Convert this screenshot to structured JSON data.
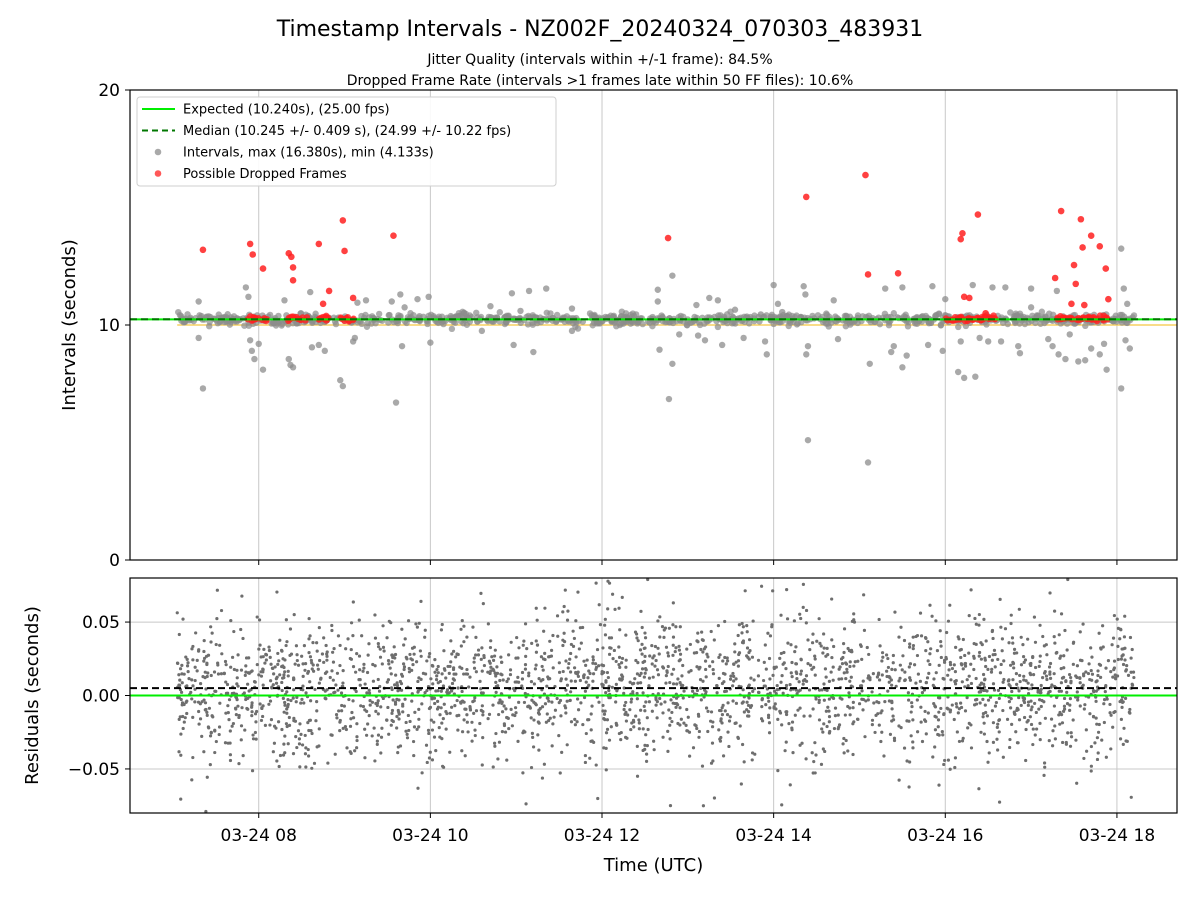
{
  "title": "Timestamp Intervals - NZ002F_20240324_070303_483931",
  "subtitle_1": "Jitter Quality (intervals within +/-1 frame): 84.5%",
  "subtitle_2": "Dropped Frame Rate (intervals >1 frames late within 50 FF files): 10.6%",
  "colors": {
    "expected": "#00ee00",
    "median": "#007700",
    "intervals": "#8c8c8c",
    "dropped": "#ff2020",
    "band": "#f5c842",
    "grid": "#c8c8c8"
  },
  "chart_data": [
    {
      "type": "scatter",
      "panel": "intervals",
      "ylabel": "Intervals (seconds)",
      "xlabel": "",
      "x_ticks": [
        "03-24 08",
        "03-24 10",
        "03-24 12",
        "03-24 14",
        "03-24 16",
        "03-24 18"
      ],
      "x_tick_hours": [
        8,
        10,
        12,
        14,
        16,
        18
      ],
      "xlim_hours": [
        6.5,
        18.7
      ],
      "y_ticks": [
        "0",
        "10",
        "20"
      ],
      "ylim": [
        0,
        20
      ],
      "grid": "x only",
      "legend_position": "upper-left",
      "legend": [
        {
          "label": "Expected (10.240s), (25.00 fps)",
          "kind": "line",
          "color": "#00ee00"
        },
        {
          "label": "Median (10.245 +/- 0.409 s), (24.99 +/- 10.22 fps)",
          "kind": "dashed",
          "color": "#007700"
        },
        {
          "label": "Intervals, max (16.380s), min (4.133s)",
          "kind": "marker",
          "color": "#8c8c8c"
        },
        {
          "label": "Possible Dropped Frames",
          "kind": "marker",
          "color": "#ff2020"
        }
      ],
      "expected_value": 10.24,
      "median_value": 10.245,
      "band_lower": 10.0,
      "series_dropped_frames": [
        [
          7.35,
          13.2
        ],
        [
          7.9,
          13.45
        ],
        [
          7.93,
          13.0
        ],
        [
          8.05,
          12.4
        ],
        [
          8.35,
          13.05
        ],
        [
          8.38,
          12.9
        ],
        [
          8.4,
          12.45
        ],
        [
          8.4,
          11.9
        ],
        [
          8.7,
          13.45
        ],
        [
          8.75,
          10.9
        ],
        [
          8.82,
          11.45
        ],
        [
          8.98,
          14.45
        ],
        [
          9.0,
          13.15
        ],
        [
          9.1,
          11.15
        ],
        [
          9.57,
          13.8
        ],
        [
          12.77,
          13.7
        ],
        [
          14.38,
          15.45
        ],
        [
          15.07,
          16.38
        ],
        [
          15.1,
          12.15
        ],
        [
          15.45,
          12.2
        ],
        [
          16.18,
          13.65
        ],
        [
          16.2,
          13.9
        ],
        [
          16.22,
          11.2
        ],
        [
          16.28,
          11.15
        ],
        [
          16.38,
          14.7
        ],
        [
          16.47,
          10.5
        ],
        [
          17.28,
          12.0
        ],
        [
          17.35,
          14.85
        ],
        [
          17.5,
          12.55
        ],
        [
          17.52,
          11.75
        ],
        [
          17.58,
          14.5
        ],
        [
          17.6,
          13.3
        ],
        [
          17.7,
          13.8
        ],
        [
          17.8,
          13.35
        ],
        [
          17.87,
          12.4
        ],
        [
          17.9,
          11.1
        ],
        [
          17.47,
          10.9
        ],
        [
          17.62,
          10.85
        ]
      ],
      "series_dropped_cluster_ranges": [
        [
          7.85,
          8.1
        ],
        [
          8.33,
          8.58
        ],
        [
          8.68,
          8.88
        ],
        [
          8.95,
          9.12
        ],
        [
          16.0,
          16.6
        ],
        [
          17.3,
          17.95
        ]
      ],
      "series_interval_outliers": [
        [
          7.3,
          11.0
        ],
        [
          7.3,
          9.45
        ],
        [
          7.35,
          7.3
        ],
        [
          7.85,
          11.6
        ],
        [
          7.88,
          11.2
        ],
        [
          7.9,
          9.35
        ],
        [
          7.92,
          8.9
        ],
        [
          7.95,
          8.55
        ],
        [
          8.0,
          9.2
        ],
        [
          8.05,
          8.1
        ],
        [
          8.3,
          11.05
        ],
        [
          8.35,
          8.55
        ],
        [
          8.37,
          8.3
        ],
        [
          8.4,
          8.2
        ],
        [
          8.6,
          11.4
        ],
        [
          8.62,
          9.05
        ],
        [
          8.7,
          9.15
        ],
        [
          8.77,
          8.9
        ],
        [
          8.95,
          7.65
        ],
        [
          8.98,
          7.4
        ],
        [
          9.1,
          9.3
        ],
        [
          9.12,
          9.45
        ],
        [
          9.15,
          10.95
        ],
        [
          9.25,
          11.05
        ],
        [
          9.55,
          11.0
        ],
        [
          9.6,
          6.7
        ],
        [
          9.65,
          11.3
        ],
        [
          9.67,
          9.1
        ],
        [
          9.7,
          10.75
        ],
        [
          9.85,
          11.1
        ],
        [
          9.98,
          11.2
        ],
        [
          10.0,
          9.25
        ],
        [
          10.6,
          9.75
        ],
        [
          10.7,
          10.8
        ],
        [
          10.95,
          11.35
        ],
        [
          10.97,
          9.15
        ],
        [
          11.05,
          10.6
        ],
        [
          11.15,
          11.45
        ],
        [
          11.2,
          8.85
        ],
        [
          11.35,
          11.55
        ],
        [
          11.65,
          10.7
        ],
        [
          11.65,
          9.75
        ],
        [
          12.65,
          11.5
        ],
        [
          12.65,
          11.0
        ],
        [
          12.67,
          8.95
        ],
        [
          12.78,
          6.85
        ],
        [
          12.82,
          12.1
        ],
        [
          12.82,
          8.35
        ],
        [
          12.9,
          9.6
        ],
        [
          13.1,
          10.85
        ],
        [
          13.12,
          9.55
        ],
        [
          13.2,
          9.35
        ],
        [
          13.25,
          11.15
        ],
        [
          13.35,
          11.05
        ],
        [
          13.4,
          9.15
        ],
        [
          13.55,
          10.65
        ],
        [
          13.65,
          9.45
        ],
        [
          13.85,
          10.45
        ],
        [
          13.9,
          9.3
        ],
        [
          13.92,
          8.75
        ],
        [
          14.0,
          11.7
        ],
        [
          14.05,
          10.9
        ],
        [
          14.1,
          10.55
        ],
        [
          14.35,
          11.65
        ],
        [
          14.37,
          11.3
        ],
        [
          14.38,
          8.75
        ],
        [
          14.4,
          5.1
        ],
        [
          14.4,
          9.1
        ],
        [
          14.7,
          11.05
        ],
        [
          14.75,
          9.4
        ],
        [
          15.1,
          4.15
        ],
        [
          15.12,
          8.35
        ],
        [
          15.3,
          11.55
        ],
        [
          15.37,
          8.85
        ],
        [
          15.4,
          9.1
        ],
        [
          15.5,
          8.2
        ],
        [
          15.5,
          11.6
        ],
        [
          15.55,
          8.7
        ],
        [
          15.8,
          9.15
        ],
        [
          15.85,
          11.65
        ],
        [
          15.97,
          8.9
        ],
        [
          16.0,
          11.1
        ],
        [
          16.15,
          8.0
        ],
        [
          16.18,
          9.3
        ],
        [
          16.22,
          7.75
        ],
        [
          16.32,
          11.7
        ],
        [
          16.35,
          7.8
        ],
        [
          16.4,
          9.45
        ],
        [
          16.5,
          9.3
        ],
        [
          16.55,
          11.6
        ],
        [
          16.65,
          9.3
        ],
        [
          16.7,
          11.6
        ],
        [
          16.85,
          9.1
        ],
        [
          16.87,
          8.8
        ],
        [
          17.0,
          11.55
        ],
        [
          17.0,
          10.75
        ],
        [
          17.2,
          9.4
        ],
        [
          17.25,
          9.1
        ],
        [
          17.3,
          11.45
        ],
        [
          17.32,
          8.75
        ],
        [
          17.4,
          8.55
        ],
        [
          17.45,
          9.6
        ],
        [
          17.55,
          8.45
        ],
        [
          17.63,
          8.5
        ],
        [
          17.7,
          9.0
        ],
        [
          17.8,
          8.75
        ],
        [
          17.85,
          9.2
        ],
        [
          17.88,
          8.1
        ],
        [
          18.05,
          13.25
        ],
        [
          18.05,
          7.3
        ],
        [
          18.08,
          11.55
        ],
        [
          18.1,
          9.35
        ],
        [
          18.12,
          10.9
        ],
        [
          18.15,
          9.0
        ]
      ],
      "x_start_hours": 7.05,
      "x_end_hours": 18.2
    },
    {
      "type": "scatter",
      "panel": "residuals",
      "ylabel": "Residuals (seconds)",
      "xlabel": "Time (UTC)",
      "x_ticks": [
        "03-24 08",
        "03-24 10",
        "03-24 12",
        "03-24 14",
        "03-24 16",
        "03-24 18"
      ],
      "x_tick_hours": [
        8,
        10,
        12,
        14,
        16,
        18
      ],
      "xlim_hours": [
        6.5,
        18.7
      ],
      "y_ticks": [
        "0.05",
        "0.00",
        "−0.05"
      ],
      "y_tick_values": [
        0.05,
        0.0,
        -0.05
      ],
      "ylim": [
        -0.08,
        0.08
      ],
      "grid": "x and y",
      "expected_value": 0.0,
      "median_value": 0.005,
      "residual_spread": 0.025,
      "point_count": 2600,
      "x_start_hours": 7.05,
      "x_end_hours": 18.2
    }
  ]
}
